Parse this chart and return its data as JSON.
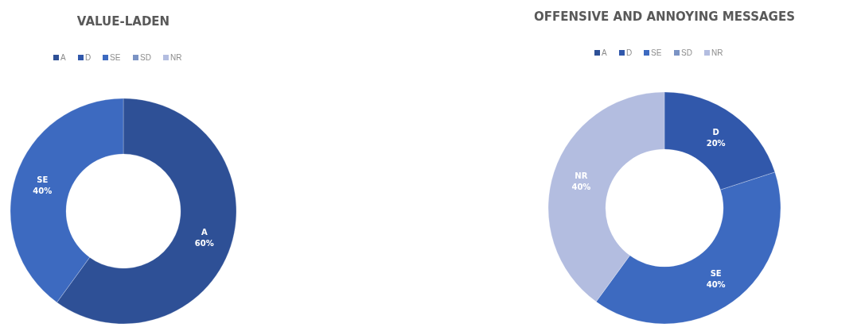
{
  "chart_data": [
    {
      "type": "donut",
      "title": "VALUE-LADEN",
      "categories": [
        "A",
        "D",
        "SE",
        "SD",
        "NR"
      ],
      "values": [
        60,
        0,
        40,
        0,
        0
      ],
      "colors": [
        "#2e5096",
        "#3158ab",
        "#3d6ac0",
        "#7b93c4",
        "#b3bde0"
      ],
      "value_labels": [
        "60%",
        null,
        "40%",
        null,
        null
      ],
      "legend": "top"
    },
    {
      "type": "donut",
      "title": "OFFENSIVE AND ANNOYING MESSAGES",
      "categories": [
        "A",
        "D",
        "SE",
        "SD",
        "NR"
      ],
      "values": [
        0,
        20,
        40,
        0,
        40
      ],
      "colors": [
        "#2e5096",
        "#3158ab",
        "#3d6ac0",
        "#7b93c4",
        "#b3bde0"
      ],
      "value_labels": [
        null,
        "20%",
        "40%",
        null,
        "40%"
      ],
      "legend": "top"
    }
  ]
}
